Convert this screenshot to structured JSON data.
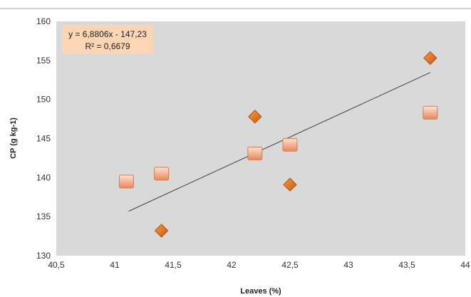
{
  "chart_data": {
    "type": "scatter",
    "xlabel": "Leaves (%)",
    "ylabel": "CP (g kg-1)",
    "xlim": [
      40.5,
      44
    ],
    "ylim": [
      130,
      160
    ],
    "x_ticks": [
      "40,5",
      "41",
      "41,5",
      "42",
      "42,5",
      "43",
      "43,5",
      "44"
    ],
    "y_ticks": [
      "130",
      "135",
      "140",
      "145",
      "150",
      "155",
      "160"
    ],
    "grid": false,
    "plot_background": "#d9d9d9",
    "series": [
      {
        "marker": "diamond",
        "color": "#e46c0a",
        "points": [
          {
            "x": 41.4,
            "y": 133.2
          },
          {
            "x": 42.2,
            "y": 147.8
          },
          {
            "x": 42.5,
            "y": 139.1
          },
          {
            "x": 43.7,
            "y": 155.3
          }
        ]
      },
      {
        "marker": "square",
        "color": "#f4a880",
        "points": [
          {
            "x": 41.1,
            "y": 139.5
          },
          {
            "x": 41.4,
            "y": 140.5
          },
          {
            "x": 42.2,
            "y": 143.1
          },
          {
            "x": 42.5,
            "y": 144.2
          },
          {
            "x": 43.7,
            "y": 148.3
          }
        ]
      }
    ],
    "trendline": {
      "slope": 6.8806,
      "intercept": -147.23,
      "x_range": [
        41.12,
        43.7
      ],
      "color": "#404040"
    },
    "annotation": {
      "line1": "y = 6,8806x - 147,23",
      "line2": "R² = 0,6679",
      "background": "#fcd5b4"
    }
  }
}
